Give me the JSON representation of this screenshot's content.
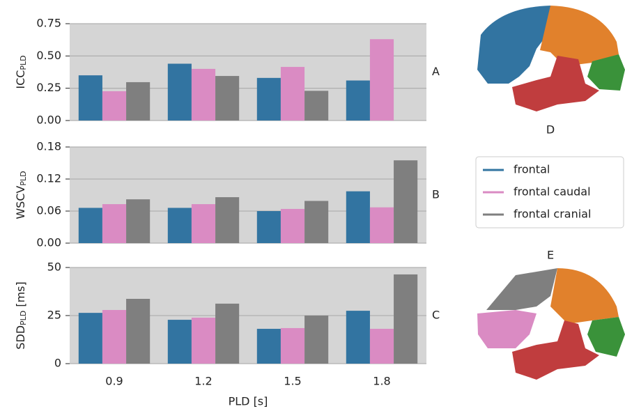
{
  "chart_data": [
    {
      "type": "bar",
      "ylabel": "ICC",
      "ylabel_sub": "PLD",
      "panel_label": "A",
      "categories": [
        "0.9",
        "1.2",
        "1.5",
        "1.8"
      ],
      "series": [
        {
          "name": "frontal",
          "color": "#3274a1",
          "values": [
            0.35,
            0.44,
            0.33,
            0.31
          ]
        },
        {
          "name": "frontal caudal",
          "color": "#da8bc3",
          "values": [
            0.227,
            0.4,
            0.415,
            0.63
          ]
        },
        {
          "name": "frontal cranial",
          "color": "#7f7f7f",
          "values": [
            0.297,
            0.345,
            0.23,
            null
          ]
        }
      ],
      "ylim": [
        0,
        0.75
      ],
      "yticks": [
        {
          "value": 0,
          "label": "0.00"
        },
        {
          "value": 0.25,
          "label": "0.25"
        },
        {
          "value": 0.5,
          "label": "0.50"
        },
        {
          "value": 0.75,
          "label": "0.75"
        }
      ],
      "grid": true
    },
    {
      "type": "bar",
      "ylabel": "WSCV",
      "ylabel_sub": "PLD",
      "panel_label": "B",
      "categories": [
        "0.9",
        "1.2",
        "1.5",
        "1.8"
      ],
      "series": [
        {
          "name": "frontal",
          "color": "#3274a1",
          "values": [
            0.066,
            0.066,
            0.06,
            0.097
          ]
        },
        {
          "name": "frontal caudal",
          "color": "#da8bc3",
          "values": [
            0.073,
            0.073,
            0.064,
            0.067
          ]
        },
        {
          "name": "frontal cranial",
          "color": "#7f7f7f",
          "values": [
            0.082,
            0.086,
            0.079,
            0.155
          ]
        }
      ],
      "ylim": [
        0,
        0.18
      ],
      "yticks": [
        {
          "value": 0,
          "label": "0.00"
        },
        {
          "value": 0.06,
          "label": "0.06"
        },
        {
          "value": 0.12,
          "label": "0.12"
        },
        {
          "value": 0.18,
          "label": "0.18"
        }
      ],
      "grid": true
    },
    {
      "type": "bar",
      "ylabel": "SDD",
      "ylabel_sub": "PLD",
      "ylabel_unit": "[ms]",
      "panel_label": "C",
      "xlabel": "PLD [s]",
      "categories": [
        "0.9",
        "1.2",
        "1.5",
        "1.8"
      ],
      "series": [
        {
          "name": "frontal",
          "color": "#3274a1",
          "values": [
            26.4,
            22.8,
            18.1,
            27.5
          ]
        },
        {
          "name": "frontal caudal",
          "color": "#da8bc3",
          "values": [
            27.9,
            23.9,
            18.5,
            18.1
          ]
        },
        {
          "name": "frontal cranial",
          "color": "#7f7f7f",
          "values": [
            33.7,
            31.2,
            25,
            46.4
          ]
        }
      ],
      "ylim": [
        0,
        50
      ],
      "yticks": [
        0,
        25,
        50
      ],
      "grid": true
    }
  ],
  "figures": [
    {
      "label": "D"
    },
    {
      "label": "E"
    }
  ]
}
